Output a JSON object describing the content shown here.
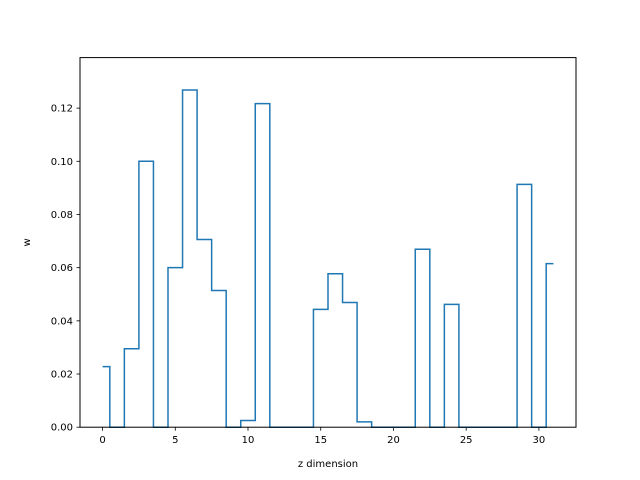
{
  "chart_data": {
    "type": "line",
    "style": "step",
    "xlabel": "z dimension",
    "ylabel": "w",
    "xlim": [
      -1.55,
      32.55
    ],
    "ylim": [
      0,
      0.139
    ],
    "xticks": [
      0,
      5,
      10,
      15,
      20,
      25,
      30
    ],
    "yticks": [
      0.0,
      0.02,
      0.04,
      0.06,
      0.08,
      0.1,
      0.12
    ],
    "ytick_labels": [
      "0.00",
      "0.02",
      "0.04",
      "0.06",
      "0.08",
      "0.10",
      "0.12"
    ],
    "grid": false,
    "line_color": "#1f77b4",
    "series": [
      {
        "x": [
          0,
          1,
          2,
          3,
          4,
          5,
          6,
          7,
          8,
          9,
          10,
          11,
          12,
          13,
          14,
          15,
          16,
          17,
          18,
          19,
          20,
          21,
          22,
          23,
          24,
          25,
          26,
          27,
          28,
          29,
          30,
          31
        ],
        "values": [
          0.0228,
          0,
          0.0295,
          0.1,
          0,
          0.06,
          0.1268,
          0.0706,
          0.0514,
          0,
          0.0025,
          0.1217,
          0,
          0,
          0,
          0.0443,
          0.0577,
          0.0469,
          0.002,
          0,
          0,
          0,
          0.0669,
          0,
          0.0462,
          0,
          0,
          0,
          0,
          0.0913,
          0,
          0.0615
        ]
      }
    ]
  }
}
